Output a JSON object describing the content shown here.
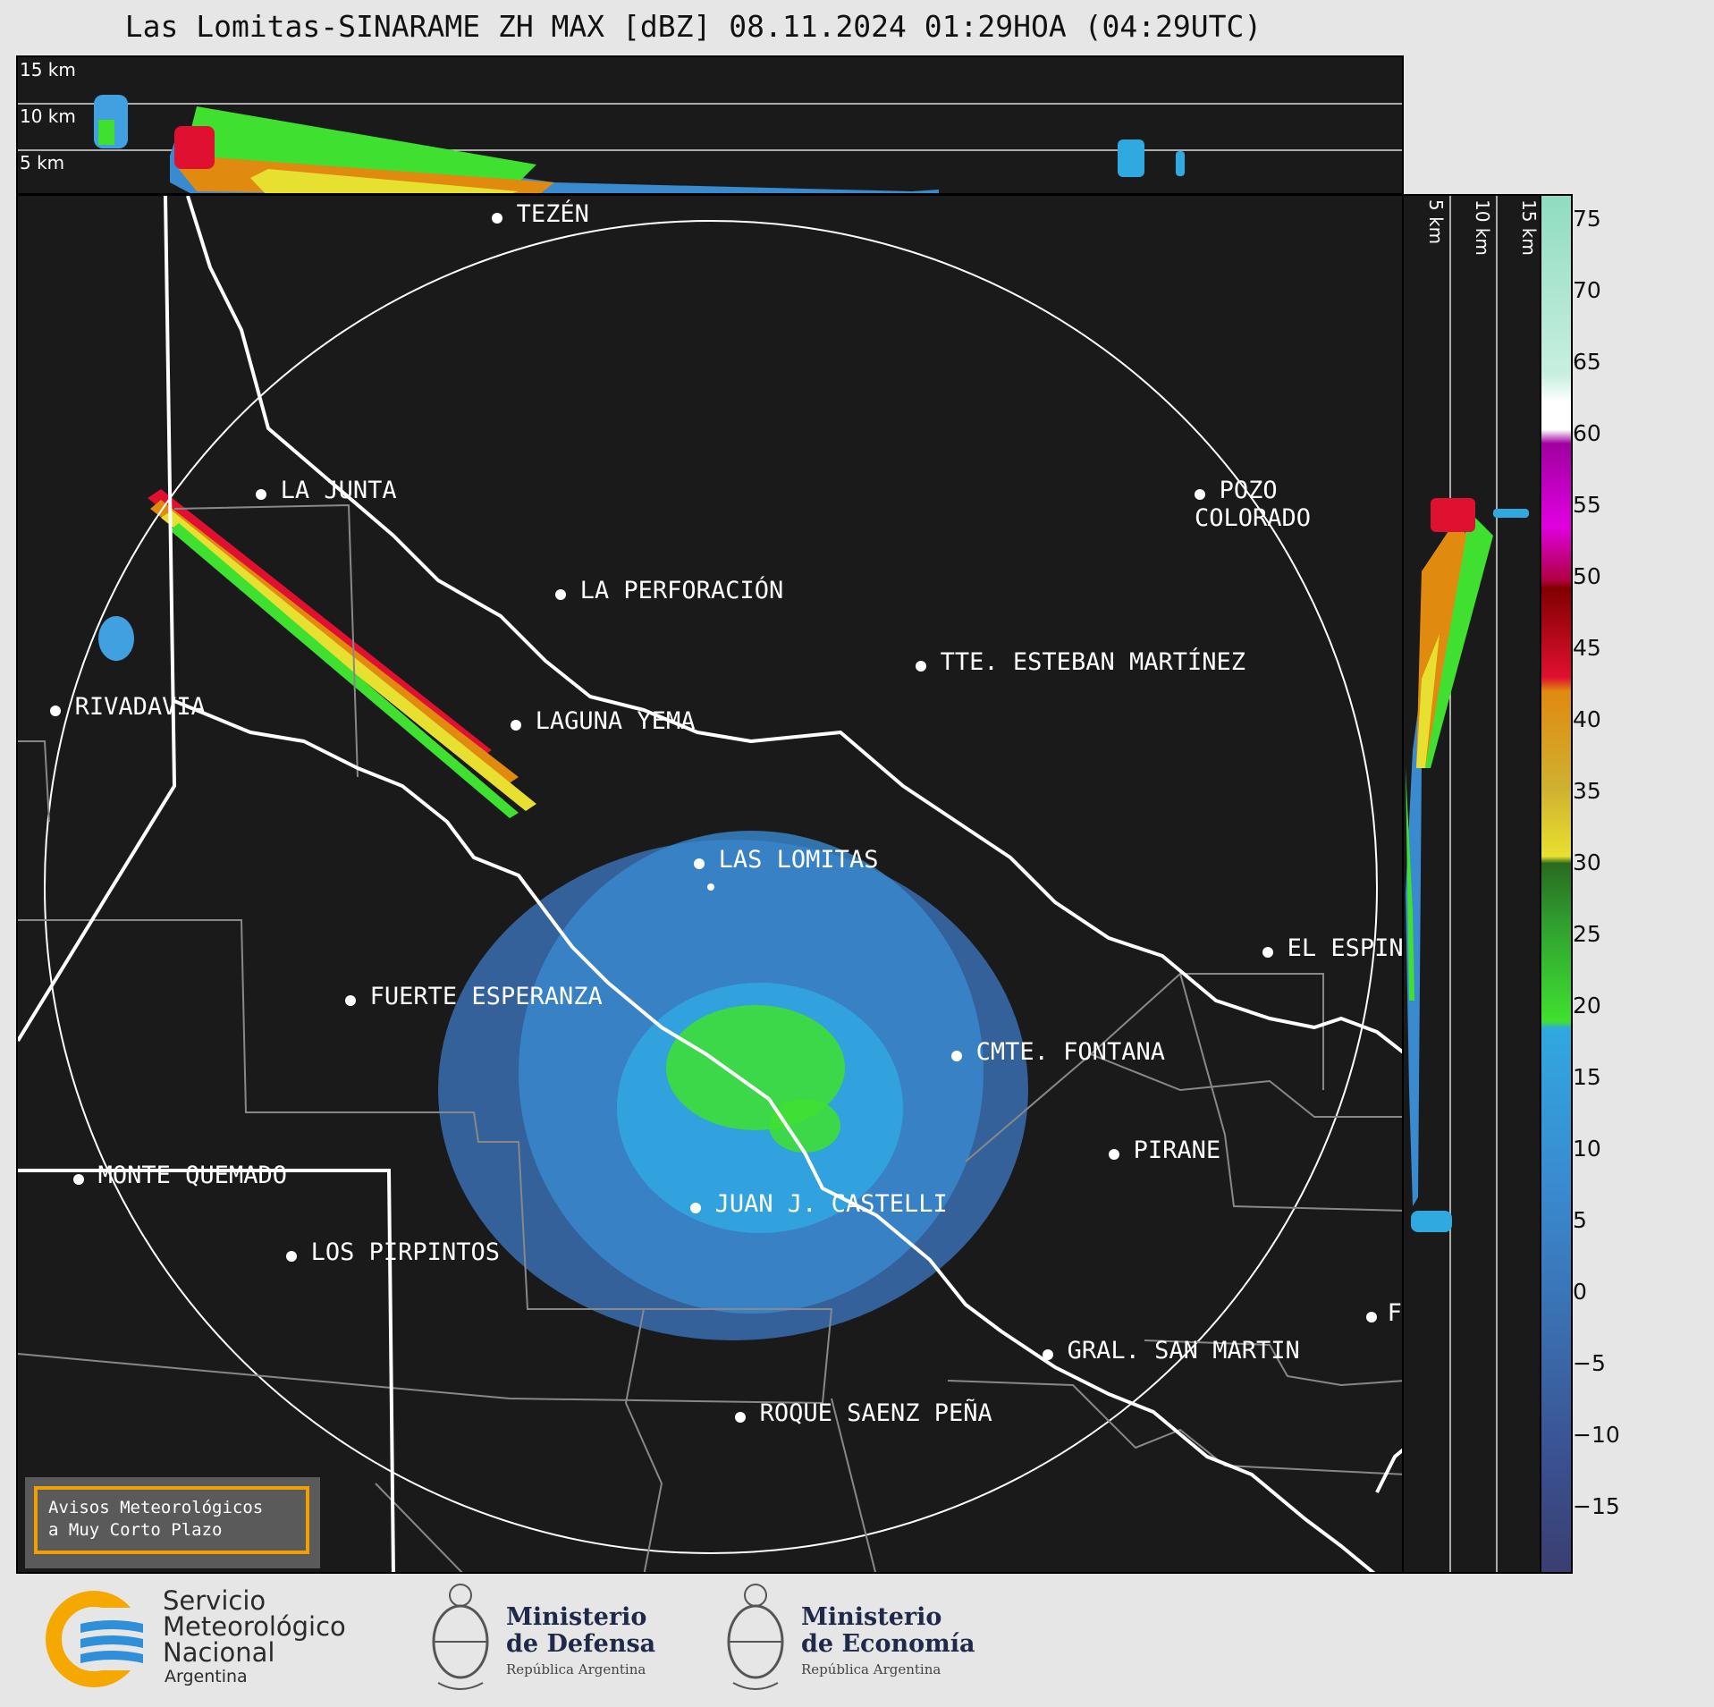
{
  "title": "Las Lomitas-SINARAME ZH MAX [dBZ] 08.11.2024 01:29HOA (04:29UTC)",
  "top_panel": {
    "heights": [
      "15 km",
      "10 km",
      "5 km"
    ]
  },
  "side_panel": {
    "heights": [
      "5 km",
      "10 km",
      "15 km"
    ]
  },
  "map": {
    "cities": [
      {
        "name": "TEZÉN"
      },
      {
        "name": "LA JUNTA"
      },
      {
        "name": "POZO COLORADO"
      },
      {
        "name": "LA PERFORACIÓN"
      },
      {
        "name": "TTE. ESTEBAN MARTÍNEZ"
      },
      {
        "name": "RIVADAVIA"
      },
      {
        "name": "LAGUNA YEMA"
      },
      {
        "name": "LAS LOMITAS"
      },
      {
        "name": "EL ESPINILLO"
      },
      {
        "name": "FUERTE ESPERANZA"
      },
      {
        "name": "CMTE. FONTANA"
      },
      {
        "name": "PIRANE"
      },
      {
        "name": "MONTE QUEMADO"
      },
      {
        "name": "JUAN J. CASTELLI"
      },
      {
        "name": "LOS PIRPINTOS"
      },
      {
        "name": "GRAL. SAN MARTIN"
      },
      {
        "name": "ROQUE SAENZ PEÑA"
      },
      {
        "name": "FO"
      }
    ]
  },
  "colorbar": {
    "unit": "dBZ",
    "ticks": [
      "75",
      "70",
      "65",
      "60",
      "55",
      "50",
      "45",
      "40",
      "35",
      "30",
      "25",
      "20",
      "15",
      "10",
      "5",
      "0",
      "−5",
      "−10",
      "−15"
    ],
    "colors": {
      "high": "#8fdcc0",
      "white": "#ffffff",
      "magenta": "#e000e0",
      "red": "#e01030",
      "orange": "#e08a10",
      "yellow": "#e8e030",
      "green": "#40e030",
      "blue": "#30a8e0",
      "navy": "#3a3f70"
    }
  },
  "legend": {
    "line1": "Avisos Meteorológicos",
    "line2": "a Muy Corto Plazo"
  },
  "footer": {
    "smn": {
      "line1": "Servicio",
      "line2": "Meteorológico",
      "line3": "Nacional",
      "line4": "Argentina"
    },
    "defensa": {
      "line1": "Ministerio",
      "line2": "de Defensa",
      "line3": "República Argentina"
    },
    "economia": {
      "line1": "Ministerio",
      "line2": "de Economía",
      "line3": "República Argentina"
    }
  }
}
